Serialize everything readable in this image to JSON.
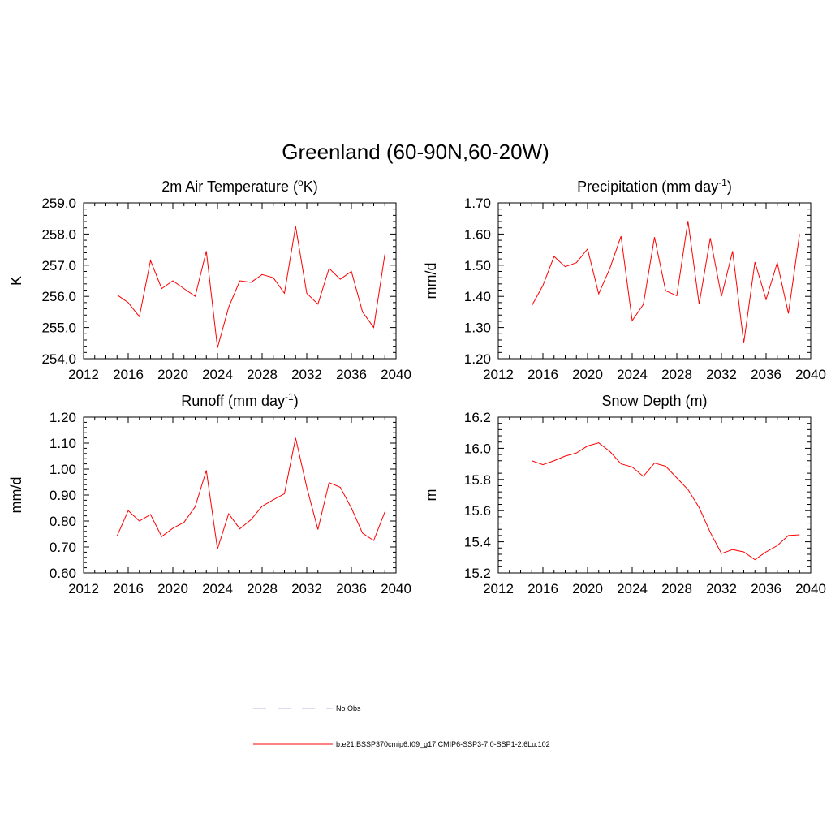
{
  "figure_title": "Greenland (60-90N,60-20W)",
  "legend": {
    "items": [
      {
        "label": "No Obs",
        "color": "#b8b8e6",
        "dash": true
      },
      {
        "label": "b.e21.BSSP370cmip6.f09_g17.CMIP6-SSP3-7.0-SSP1-2.6Lu.102",
        "color": "#ff0000",
        "dash": false
      }
    ]
  },
  "chart_data": [
    {
      "type": "line",
      "title": "2m Air Temperature (",
      "title_sup": "o",
      "title_after": "K)",
      "xlabel": "",
      "ylabel": "K",
      "xlim": [
        2012,
        2040
      ],
      "ylim": [
        254.0,
        259.0
      ],
      "xticks": [
        2012,
        2016,
        2020,
        2024,
        2028,
        2032,
        2036,
        2040
      ],
      "yticks": [
        254.0,
        255.0,
        256.0,
        257.0,
        258.0,
        259.0
      ],
      "ytick_decimals": 1,
      "grid": false,
      "series": [
        {
          "color": "#ff0000",
          "x": [
            2015,
            2016,
            2017,
            2018,
            2019,
            2020,
            2021,
            2022,
            2023,
            2024,
            2025,
            2026,
            2027,
            2028,
            2029,
            2030,
            2031,
            2032,
            2033,
            2034,
            2035,
            2036,
            2037,
            2038,
            2039
          ],
          "y": [
            256.05,
            255.8,
            255.35,
            257.15,
            256.25,
            256.5,
            256.25,
            256.0,
            257.45,
            254.35,
            255.65,
            256.5,
            256.45,
            256.7,
            256.6,
            256.1,
            258.25,
            256.1,
            255.75,
            256.9,
            256.55,
            256.8,
            255.5,
            255.0,
            257.35
          ]
        }
      ]
    },
    {
      "type": "line",
      "title": "Precipitation (mm day",
      "title_sup": "-1",
      "title_after": ")",
      "xlabel": "",
      "ylabel": "mm/d",
      "xlim": [
        2012,
        2040
      ],
      "ylim": [
        1.2,
        1.7
      ],
      "xticks": [
        2012,
        2016,
        2020,
        2024,
        2028,
        2032,
        2036,
        2040
      ],
      "yticks": [
        1.2,
        1.3,
        1.4,
        1.5,
        1.6,
        1.7
      ],
      "ytick_decimals": 2,
      "grid": false,
      "series": [
        {
          "color": "#ff0000",
          "x": [
            2015,
            2016,
            2017,
            2018,
            2019,
            2020,
            2021,
            2022,
            2023,
            2024,
            2025,
            2026,
            2027,
            2028,
            2029,
            2030,
            2031,
            2032,
            2033,
            2034,
            2035,
            2036,
            2037,
            2038,
            2039
          ],
          "y": [
            1.37,
            1.435,
            1.528,
            1.495,
            1.508,
            1.552,
            1.408,
            1.49,
            1.593,
            1.322,
            1.374,
            1.59,
            1.418,
            1.402,
            1.642,
            1.375,
            1.587,
            1.4,
            1.545,
            1.25,
            1.51,
            1.39,
            1.508,
            1.345,
            1.6
          ]
        }
      ]
    },
    {
      "type": "line",
      "title": "Runoff (mm day",
      "title_sup": "-1",
      "title_after": ")",
      "xlabel": "",
      "ylabel": "mm/d",
      "xlim": [
        2012,
        2040
      ],
      "ylim": [
        0.6,
        1.2
      ],
      "xticks": [
        2012,
        2016,
        2020,
        2024,
        2028,
        2032,
        2036,
        2040
      ],
      "yticks": [
        0.6,
        0.7,
        0.8,
        0.9,
        1.0,
        1.1,
        1.2
      ],
      "ytick_decimals": 2,
      "grid": false,
      "series": [
        {
          "color": "#ff0000",
          "x": [
            2015,
            2016,
            2017,
            2018,
            2019,
            2020,
            2021,
            2022,
            2023,
            2024,
            2025,
            2026,
            2027,
            2028,
            2029,
            2030,
            2031,
            2032,
            2033,
            2034,
            2035,
            2036,
            2037,
            2038,
            2039
          ],
          "y": [
            0.742,
            0.84,
            0.8,
            0.825,
            0.74,
            0.772,
            0.795,
            0.855,
            0.995,
            0.692,
            0.828,
            0.77,
            0.805,
            0.857,
            0.882,
            0.905,
            1.12,
            0.93,
            0.767,
            0.948,
            0.93,
            0.85,
            0.753,
            0.725,
            0.835
          ]
        }
      ]
    },
    {
      "type": "line",
      "title": "Snow Depth (m)",
      "title_sup": "",
      "title_after": "",
      "xlabel": "",
      "ylabel": "m",
      "xlim": [
        2012,
        2040
      ],
      "ylim": [
        15.2,
        16.2
      ],
      "xticks": [
        2012,
        2016,
        2020,
        2024,
        2028,
        2032,
        2036,
        2040
      ],
      "yticks": [
        15.2,
        15.4,
        15.6,
        15.8,
        16.0,
        16.2
      ],
      "ytick_decimals": 1,
      "grid": false,
      "series": [
        {
          "color": "#ff0000",
          "x": [
            2015,
            2016,
            2017,
            2018,
            2019,
            2020,
            2021,
            2022,
            2023,
            2024,
            2025,
            2026,
            2027,
            2028,
            2029,
            2030,
            2031,
            2032,
            2033,
            2034,
            2035,
            2036,
            2037,
            2038,
            2039
          ],
          "y": [
            15.92,
            15.895,
            15.92,
            15.95,
            15.97,
            16.015,
            16.035,
            15.98,
            15.9,
            15.88,
            15.82,
            15.905,
            15.885,
            15.81,
            15.735,
            15.62,
            15.46,
            15.325,
            15.35,
            15.335,
            15.285,
            15.335,
            15.375,
            15.44,
            15.445
          ]
        }
      ]
    }
  ]
}
